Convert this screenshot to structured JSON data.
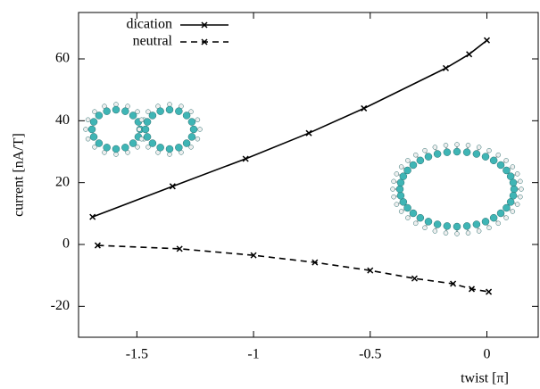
{
  "chart_data": {
    "type": "line",
    "x_label": "twist [π]",
    "y_label": "current [nA/T]",
    "xlim": [
      -1.75,
      0.22
    ],
    "ylim": [
      -30,
      75
    ],
    "xticks": [
      -1.5,
      -1,
      -0.5,
      0
    ],
    "yticks": [
      -20,
      0,
      20,
      40,
      60
    ],
    "legend": "upper-left",
    "series": [
      {
        "name": "dication",
        "color": "#000000",
        "dash": "solid",
        "x": [
          -1.69,
          -1.347,
          -1.034,
          -0.763,
          -0.527,
          -0.176,
          -0.076,
          0
        ],
        "values": [
          8.9,
          18.8,
          27.7,
          36,
          44,
          57,
          61.5,
          66
        ]
      },
      {
        "name": "neutral",
        "color": "#000000",
        "dash": "dashed",
        "x": [
          -1.668,
          -1.317,
          -1.0,
          -0.737,
          -0.5,
          -0.31,
          -0.145,
          -0.065,
          0.008
        ],
        "values": [
          -0.3,
          -1.4,
          -3.5,
          -5.8,
          -8.4,
          -11,
          -12.7,
          -14.4,
          -15.3
        ]
      }
    ]
  }
}
